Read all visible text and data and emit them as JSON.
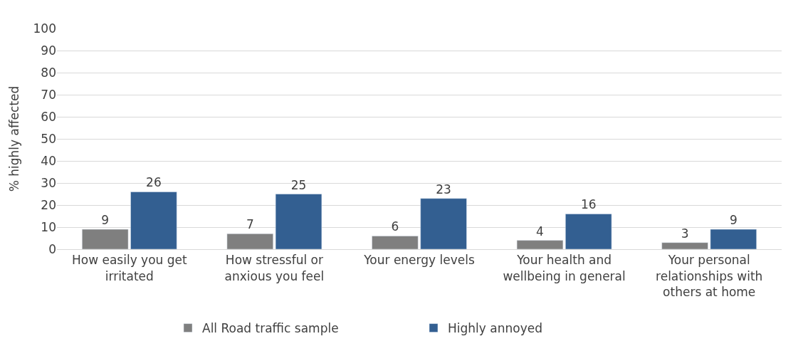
{
  "chart_data": {
    "type": "bar",
    "ylabel": "% highly affected",
    "categories": [
      "How easily you get irritated",
      "How stressful or anxious you feel",
      "Your energy levels",
      "Your health and wellbeing in general",
      "Your personal relationships with others at home"
    ],
    "series": [
      {
        "name": "All Road traffic sample",
        "color": "#7f7f7f",
        "values": [
          9,
          7,
          6,
          4,
          3
        ]
      },
      {
        "name": "Highly annoyed",
        "color": "#335f91",
        "values": [
          26,
          25,
          23,
          16,
          9
        ]
      }
    ],
    "ylim": [
      0,
      100
    ],
    "yticks": [
      0,
      10,
      20,
      30,
      40,
      50,
      60,
      70,
      80,
      90,
      100
    ],
    "grid": "y",
    "legend": "bottom",
    "data_labels": true
  }
}
